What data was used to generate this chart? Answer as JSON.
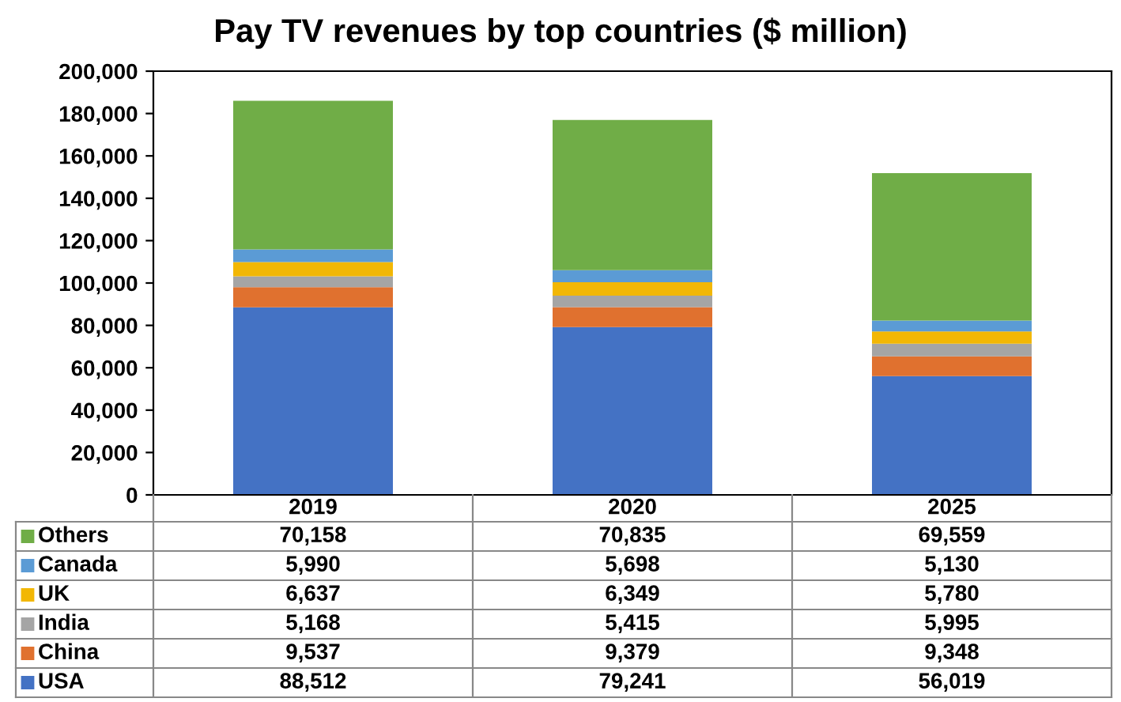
{
  "chart_data": {
    "type": "bar",
    "title": "Pay TV revenues by top countries ($ million)",
    "categories": [
      "2019",
      "2020",
      "2025"
    ],
    "stacked": true,
    "legend": "bottom",
    "ylim": [
      0,
      200000
    ],
    "yticks": [
      0,
      {
        "value": 20000,
        "label": "20,000"
      },
      {
        "value": 40000,
        "label": "40,000"
      },
      {
        "value": 60000,
        "label": "60,000"
      },
      {
        "value": 80000,
        "label": "80,000"
      },
      {
        "value": 100000,
        "label": "100,000"
      },
      {
        "value": 120000,
        "label": "120,000"
      },
      {
        "value": 140000,
        "label": "140,000"
      },
      {
        "value": 160000,
        "label": "160,000"
      },
      {
        "value": 180000,
        "label": "180,000"
      },
      {
        "value": 200000,
        "label": "200,000"
      }
    ],
    "series": [
      {
        "name": "USA",
        "color": "#4472c4",
        "values": [
          88512,
          79241,
          56019
        ],
        "value_labels": [
          "88,512",
          "79,241",
          "56,019"
        ]
      },
      {
        "name": "China",
        "color": "#e0712f",
        "values": [
          9537,
          9379,
          9348
        ],
        "value_labels": [
          "9,537",
          "9,379",
          "9,348"
        ]
      },
      {
        "name": "India",
        "color": "#a5a5a5",
        "values": [
          5168,
          5415,
          5995
        ],
        "value_labels": [
          "5,168",
          "5,415",
          "5,995"
        ]
      },
      {
        "name": "UK",
        "color": "#f2b705",
        "values": [
          6637,
          6349,
          5780
        ],
        "value_labels": [
          "6,637",
          "6,349",
          "5,780"
        ]
      },
      {
        "name": "Canada",
        "color": "#5b9bd5",
        "values": [
          5990,
          5698,
          5130
        ],
        "value_labels": [
          "5,990",
          "5,698",
          "5,130"
        ]
      },
      {
        "name": "Others",
        "color": "#70ad47",
        "values": [
          70158,
          70835,
          69559
        ],
        "value_labels": [
          "70,158",
          "70,835",
          "69,559"
        ]
      }
    ]
  }
}
